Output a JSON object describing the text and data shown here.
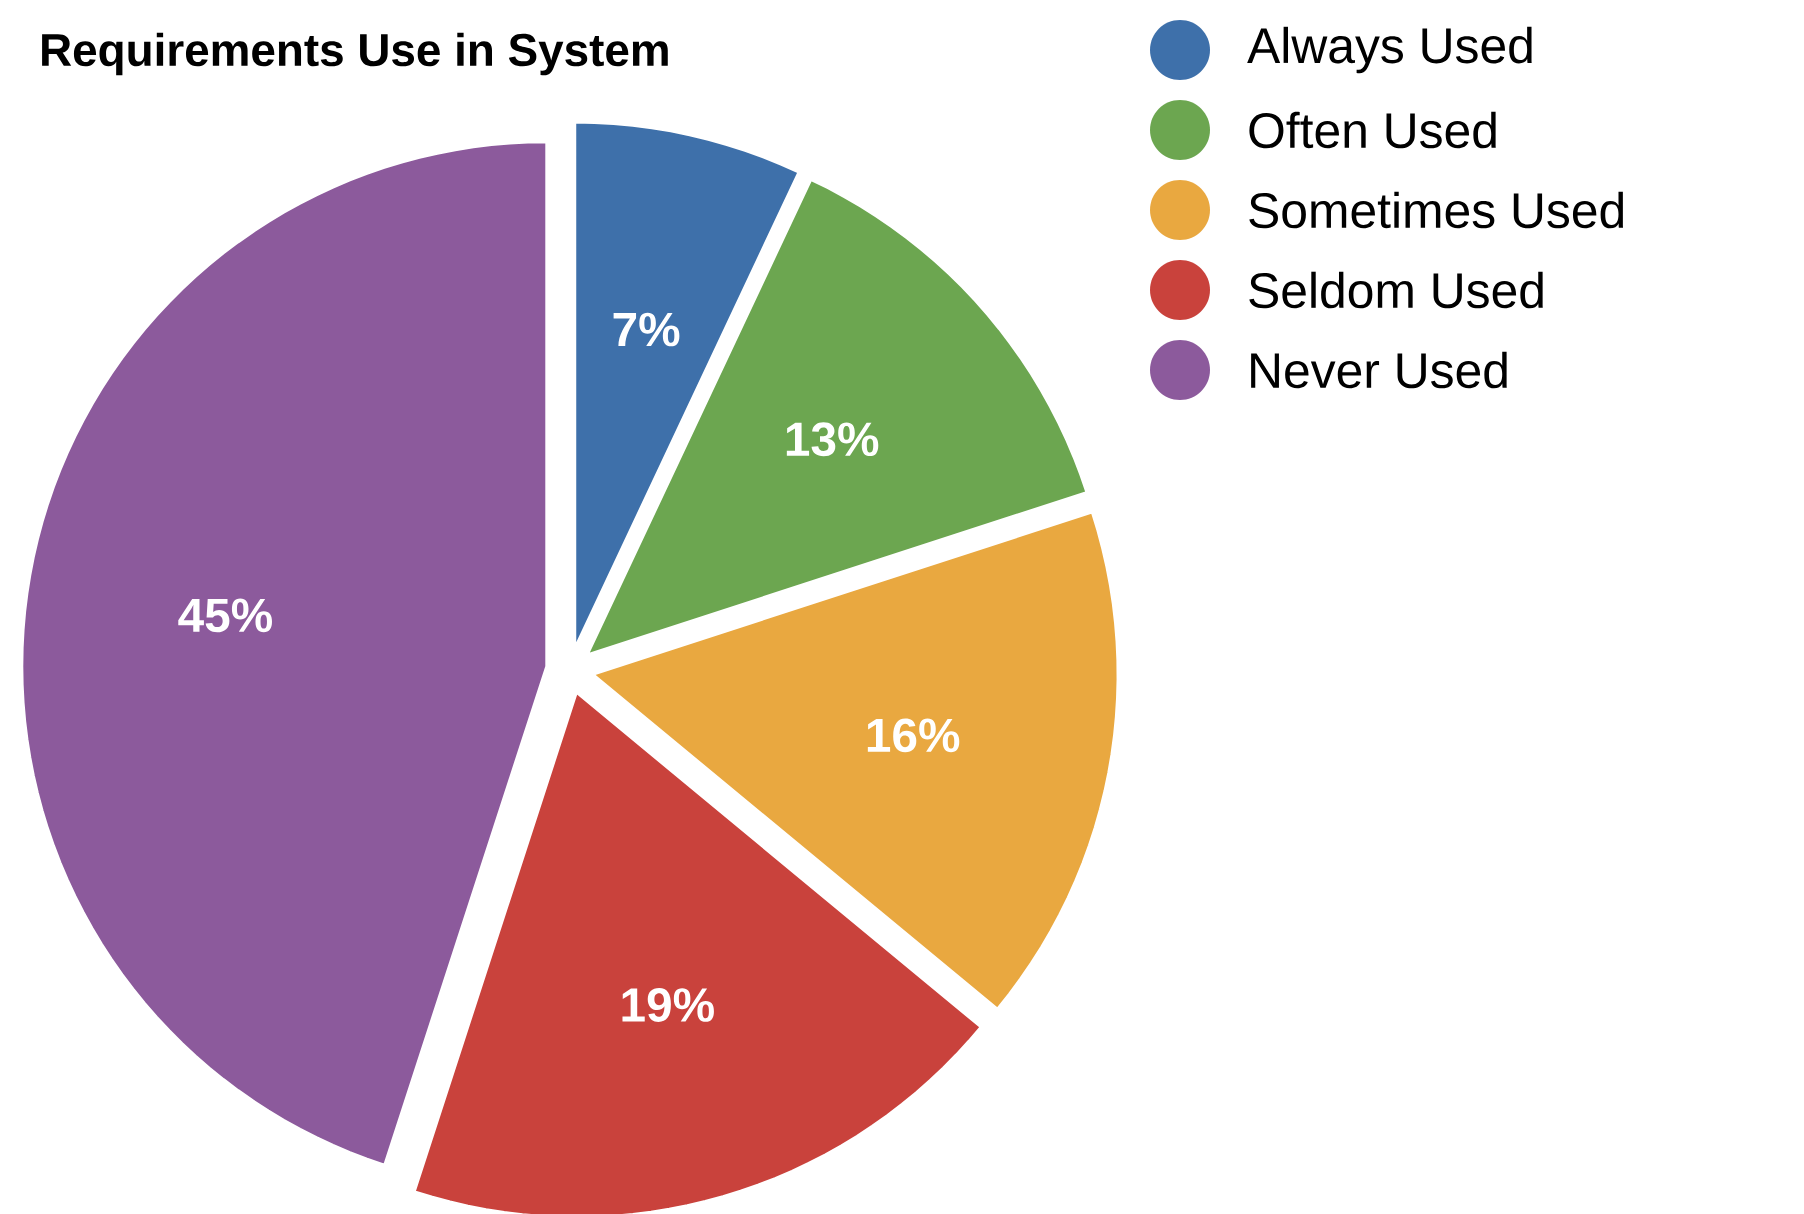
{
  "chart_data": {
    "type": "pie",
    "title": "Requirements Use in System",
    "categories": [
      "Always Used",
      "Often Used",
      "Sometimes Used",
      "Seldom Used",
      "Never Used"
    ],
    "values": [
      7,
      13,
      16,
      19,
      45
    ],
    "colors": [
      "#3e70aa",
      "#6ca650",
      "#e9a840",
      "#c9423c",
      "#8c5a9c"
    ],
    "value_labels": [
      "7%",
      "13%",
      "16%",
      "19%",
      "45%"
    ],
    "legend": "top right"
  }
}
